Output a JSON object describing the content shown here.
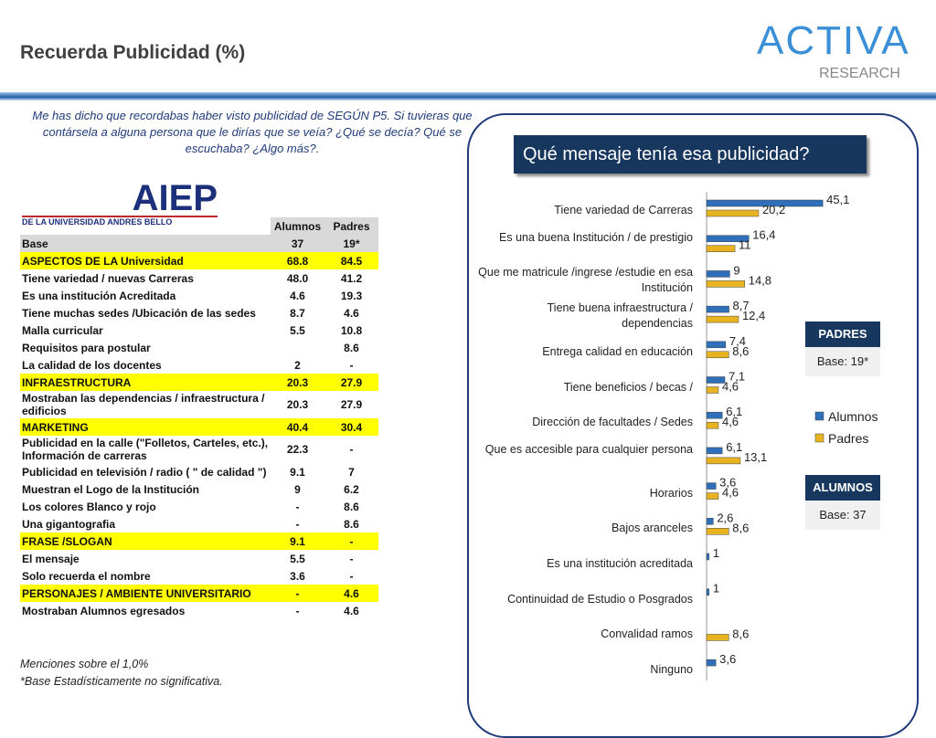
{
  "header": {
    "title": "Recuerda Publicidad (%)",
    "logo": {
      "name": "ACTIVA",
      "sub": "RESEARCH"
    }
  },
  "question": "Me has dicho que recordabas haber visto publicidad de SEGÚN P5. Si tuvieras que contársela a alguna persona que le dirías que se veía? ¿Qué se decía? Qué se escuchaba? ¿Algo más?.",
  "brand": {
    "name": "AIEP",
    "sub": "DE LA UNIVERSIDAD ANDRES BELLO"
  },
  "table": {
    "columns": [
      "Alumnos",
      "Padres"
    ],
    "base": {
      "label": "Base",
      "values": [
        "37",
        "19*"
      ]
    },
    "rows": [
      {
        "label": "ASPECTOS DE LA Universidad",
        "values": [
          "68.8",
          "84.5"
        ],
        "highlight": true
      },
      {
        "label": "Tiene variedad / nuevas Carreras",
        "values": [
          "48.0",
          "41.2"
        ],
        "highlight": false
      },
      {
        "label": "Es una institución Acreditada",
        "values": [
          "4.6",
          "19.3"
        ],
        "highlight": false
      },
      {
        "label": "Tiene muchas sedes /Ubicación de las sedes",
        "values": [
          "8.7",
          "4.6"
        ],
        "highlight": false
      },
      {
        "label": "Malla curricular",
        "values": [
          "5.5",
          "10.8"
        ],
        "highlight": false
      },
      {
        "label": "Requisitos para postular",
        "values": [
          null,
          "8.6"
        ],
        "highlight": false
      },
      {
        "label": "La calidad de los docentes",
        "values": [
          "2",
          "-"
        ],
        "highlight": false
      },
      {
        "label": "INFRAESTRUCTURA",
        "values": [
          "20.3",
          "27.9"
        ],
        "highlight": true
      },
      {
        "label": "Mostraban las dependencias / infraestructura / edificios",
        "values": [
          "20.3",
          "27.9"
        ],
        "highlight": false
      },
      {
        "label": "MARKETING",
        "values": [
          "40.4",
          "30.4"
        ],
        "highlight": true
      },
      {
        "label": "Publicidad en la calle (\"Folletos, Carteles, etc.), Información de carreras",
        "values": [
          "22.3",
          "-"
        ],
        "highlight": false
      },
      {
        "label": "Publicidad en televisión / radio ( \" de calidad \")",
        "values": [
          "9.1",
          "7"
        ],
        "highlight": false
      },
      {
        "label": "Muestran el Logo de la Institución",
        "values": [
          "9",
          "6.2"
        ],
        "highlight": false
      },
      {
        "label": "Los colores Blanco y rojo",
        "values": [
          "-",
          "8.6"
        ],
        "highlight": false
      },
      {
        "label": "Una gigantografia",
        "values": [
          "-",
          "8.6"
        ],
        "highlight": false
      },
      {
        "label": "FRASE /SLOGAN",
        "values": [
          "9.1",
          "-"
        ],
        "highlight": true
      },
      {
        "label": "El mensaje",
        "values": [
          "5.5",
          "-"
        ],
        "highlight": false
      },
      {
        "label": "Solo recuerda el nombre",
        "values": [
          "3.6",
          "-"
        ],
        "highlight": false
      },
      {
        "label": "PERSONAJES / AMBIENTE UNIVERSITARIO",
        "values": [
          "-",
          "4.6"
        ],
        "highlight": true
      },
      {
        "label": "Mostraban Alumnos egresados",
        "values": [
          "-",
          "4.6"
        ],
        "highlight": false
      }
    ]
  },
  "notes": [
    "Menciones sobre el 1,0%",
    "*Base Estadísticamente no significativa."
  ],
  "chart_data": {
    "type": "hbar",
    "title": "Qué mensaje tenía esa publicidad?",
    "categories": [
      "Tiene variedad de Carreras",
      "Es una buena Institución / de prestigio",
      "Que me matricule /ingrese /estudie en esa Institución",
      "Tiene buena infraestructura / dependencias",
      "Entrega calidad en educación",
      "Tiene beneficios / becas /",
      "Dirección de facultades / Sedes",
      "Que es accesible para cualquier persona",
      "Horarios",
      "Bajos aranceles",
      "Es una institución acreditada",
      "Continuidad de Estudio o Posgrados",
      "Convalidad ramos",
      "Ninguno"
    ],
    "series": [
      {
        "name": "Alumnos",
        "color": "#2f6fba",
        "values": [
          45.1,
          16.4,
          9,
          8.7,
          7.4,
          7.1,
          6.1,
          6.1,
          3.6,
          2.6,
          1,
          1,
          null,
          3.6
        ],
        "value_labels": [
          "45,1",
          "16,4",
          "9",
          "8,7",
          "7,4",
          "7,1",
          "6,1",
          "6,1",
          "3,6",
          "2,6",
          "1",
          "1",
          null,
          "3,6"
        ]
      },
      {
        "name": "Padres",
        "color": "#e8b320",
        "values": [
          20.2,
          11,
          14.8,
          12.4,
          8.6,
          4.6,
          4.6,
          13.1,
          4.6,
          8.6,
          null,
          null,
          8.6,
          null
        ],
        "value_labels": [
          "20,2",
          "11",
          "14,8",
          "12,4",
          "8,6",
          "4,6",
          "4,6",
          "13,1",
          "4,6",
          "8,6",
          null,
          null,
          "8,6",
          null
        ]
      }
    ],
    "xlim": [
      0,
      50
    ],
    "bases": [
      {
        "label": "PADRES",
        "value": "Base: 19*"
      },
      {
        "label": "ALUMNOS",
        "value": "Base: 37"
      }
    ]
  }
}
